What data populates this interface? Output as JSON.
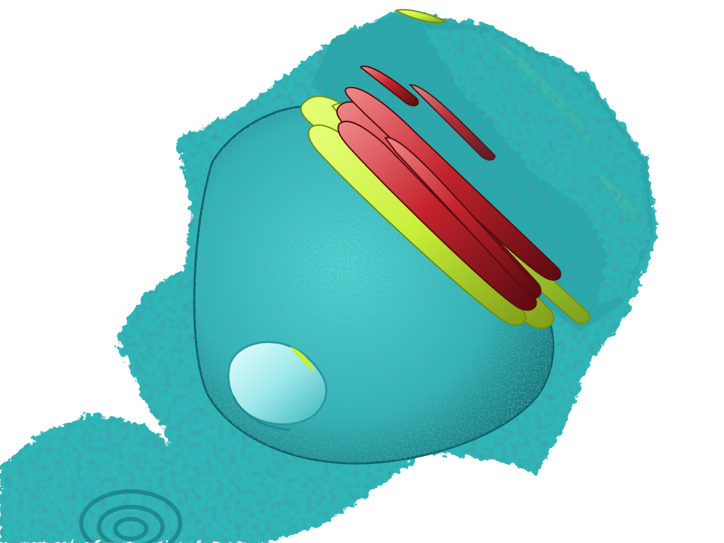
{
  "render": {
    "background": "#ffffff",
    "colors": {
      "outer_isosurface": "#38c9c9",
      "outer_isosurface_dark": "#0d5f66",
      "outer_isosurface_light": "#b6f2f2",
      "mid_isosurface": "#c8f03a",
      "mid_isosurface_dark": "#6f8f10",
      "inner_isosurface": "#c4242c",
      "inner_isosurface_dark": "#5a0a10",
      "inner_isosurface_light": "#f08a8a"
    },
    "layers": [
      {
        "name": "outer-isosurface",
        "color_key": "outer_isosurface"
      },
      {
        "name": "middle-isosurface",
        "color_key": "mid_isosurface"
      },
      {
        "name": "inner-isosurface",
        "color_key": "inner_isosurface"
      }
    ]
  }
}
